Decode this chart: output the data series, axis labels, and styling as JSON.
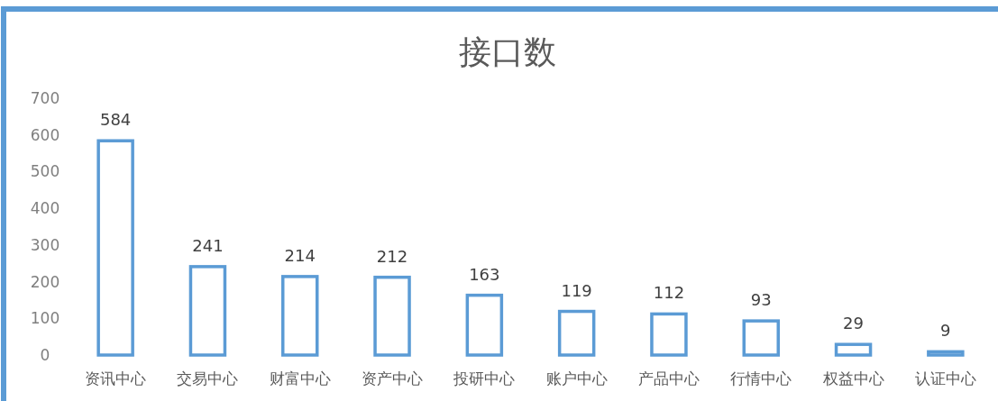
{
  "chart_data": {
    "type": "bar",
    "title": "接口数",
    "categories": [
      "资讯中心",
      "交易中心",
      "财富中心",
      "资产中心",
      "投研中心",
      "账户中心",
      "产品中心",
      "行情中心",
      "权益中心",
      "认证中心"
    ],
    "values": [
      584,
      241,
      214,
      212,
      163,
      119,
      112,
      93,
      29,
      9
    ],
    "color": "#5b9bd5",
    "ylim": [
      0,
      700
    ],
    "yticks": [
      0,
      100,
      200,
      300,
      400,
      500,
      600,
      700
    ],
    "data_labels": true,
    "grid": false
  }
}
